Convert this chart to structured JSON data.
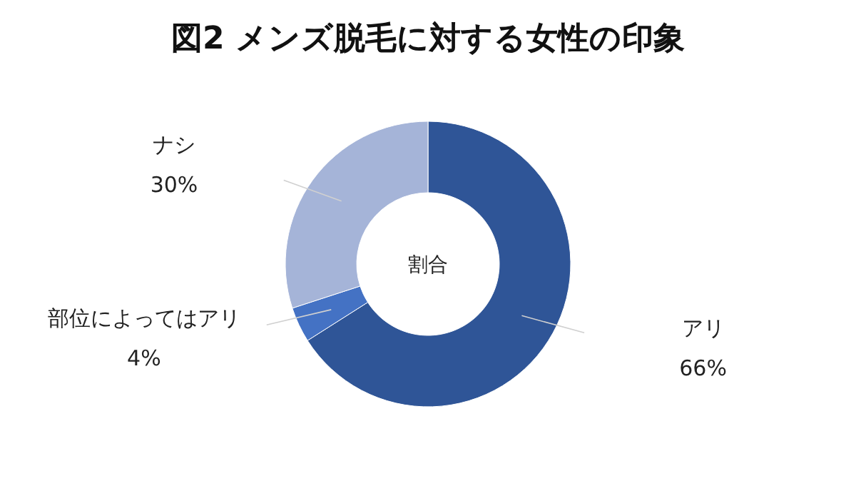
{
  "chart_data": {
    "type": "donut",
    "title": "図2 メンズ脱毛に対する女性の印象",
    "categories": [
      "アリ",
      "部位によってはアリ",
      "ナシ"
    ],
    "values": [
      66,
      4,
      30
    ],
    "value_labels": [
      "66%",
      "4%",
      "30%"
    ],
    "colors": [
      "#2f5597",
      "#4472c4",
      "#a5b4d8"
    ],
    "annotations": [
      "割合"
    ]
  }
}
